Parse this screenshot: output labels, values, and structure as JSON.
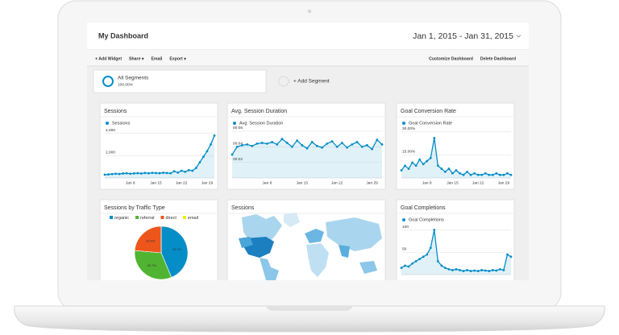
{
  "header": {
    "title": "My Dashboard",
    "date_range": "Jan 1, 2015 - Jan 31, 2015"
  },
  "toolbar": {
    "left": [
      "+ Add Widget",
      "Share ▾",
      "Email",
      "Export ▾"
    ],
    "right": [
      "Customize Dashboard",
      "Delete Dashboard"
    ]
  },
  "segments": [
    {
      "name": "All Segments",
      "share": "100.00%"
    },
    {
      "name": "+ Add Segment"
    }
  ],
  "widgets": [
    {
      "title": "Sessions",
      "type": "line",
      "legend": "Sessions",
      "color": "#058dc7",
      "categories": [
        null,
        null,
        null,
        null,
        null,
        null,
        null,
        "Jan 8",
        null,
        null,
        null,
        null,
        null,
        null,
        "Jan 15",
        null,
        null,
        null,
        null,
        null,
        null,
        "Jan 22",
        null,
        null,
        null,
        null,
        null,
        null,
        "Jan 29",
        null,
        null
      ],
      "values": [
        300,
        320,
        350,
        380,
        360,
        400,
        420,
        380,
        410,
        430,
        400,
        450,
        420,
        460,
        440,
        430,
        470,
        450,
        420,
        600,
        480,
        650,
        550,
        700,
        650,
        900,
        1400,
        1900,
        2400,
        3000,
        3800
      ],
      "ylim": [
        0,
        4400
      ],
      "yticks": [
        {
          "value": 2000,
          "label": "2,000"
        },
        {
          "value": 4000,
          "label": "4,000"
        }
      ]
    },
    {
      "title": "Avg. Session Duration",
      "type": "line",
      "legend": "Avg. Session Duration",
      "color": "#058dc7",
      "categories": [
        null,
        null,
        null,
        null,
        null,
        null,
        null,
        "Jan 8",
        null,
        null,
        null,
        null,
        null,
        null,
        "Jan 15",
        null,
        null,
        null,
        null,
        null,
        null,
        "Jan 22",
        null,
        null,
        null,
        null,
        null,
        null,
        "Jan 29",
        null,
        null
      ],
      "values": [
        3.0,
        4.0,
        4.2,
        4.3,
        4.1,
        4.4,
        4.5,
        4.4,
        4.6,
        4.3,
        5.0,
        4.5,
        4.0,
        4.8,
        4.2,
        3.8,
        4.6,
        4.1,
        3.9,
        4.4,
        4.7,
        4.0,
        4.5,
        3.9,
        4.3,
        4.6,
        4.0,
        4.2,
        3.7,
        4.9,
        4.3
      ],
      "ylim": [
        0,
        6.3
      ],
      "yticks": [
        {
          "value": 2,
          "label": "00:02"
        },
        {
          "value": 4,
          "label": "00:04"
        },
        {
          "value": 6,
          "label": "00:06"
        }
      ]
    },
    {
      "title": "Goal Conversion Rate",
      "type": "line",
      "legend": "Goal Conversion Rate",
      "color": "#058dc7",
      "categories": [
        null,
        null,
        null,
        null,
        null,
        null,
        null,
        "Jan 8",
        null,
        null,
        null,
        null,
        null,
        null,
        "Jan 15",
        null,
        null,
        null,
        null,
        null,
        null,
        "Jan 22",
        null,
        null,
        null,
        null,
        null,
        null,
        "Jan 29",
        null,
        null
      ],
      "values": [
        5,
        8,
        6,
        10,
        8,
        12,
        9,
        11,
        13,
        26,
        8,
        6,
        4,
        6,
        3,
        5,
        3,
        2,
        4,
        2,
        3,
        2,
        2,
        3,
        2,
        2,
        3,
        2,
        2,
        3,
        2
      ],
      "ylim": [
        0,
        32
      ],
      "yticks": [
        {
          "value": 15,
          "label": "15.00%"
        },
        {
          "value": 30,
          "label": "30.00%"
        }
      ]
    },
    {
      "title": "Sessions by Traffic Type",
      "type": "pie",
      "categories": [
        "organic",
        "referral",
        "direct",
        "email"
      ],
      "colors": [
        "#058dc7",
        "#50b432",
        "#ed561b",
        "#edef00"
      ],
      "values": [
        43.7,
        32.7,
        23.6,
        0
      ],
      "value_labels": [
        "43.7%",
        "32.7%",
        "23.6%",
        null
      ]
    },
    {
      "title": "Sessions",
      "type": "map",
      "title_color": "#1a6fb5"
    },
    {
      "title": "Goal Completions",
      "type": "line",
      "legend": "Goal Completions",
      "color": "#058dc7",
      "title_color": "#1a6fb5",
      "values": [
        15,
        20,
        18,
        25,
        30,
        35,
        40,
        45,
        60,
        100,
        30,
        20,
        15,
        12,
        10,
        12,
        10,
        8,
        10,
        8,
        9,
        8,
        10,
        9,
        8,
        10,
        9,
        12,
        10,
        45,
        40
      ],
      "ylim": [
        0,
        110
      ],
      "yticks": [
        50,
        100
      ]
    }
  ]
}
